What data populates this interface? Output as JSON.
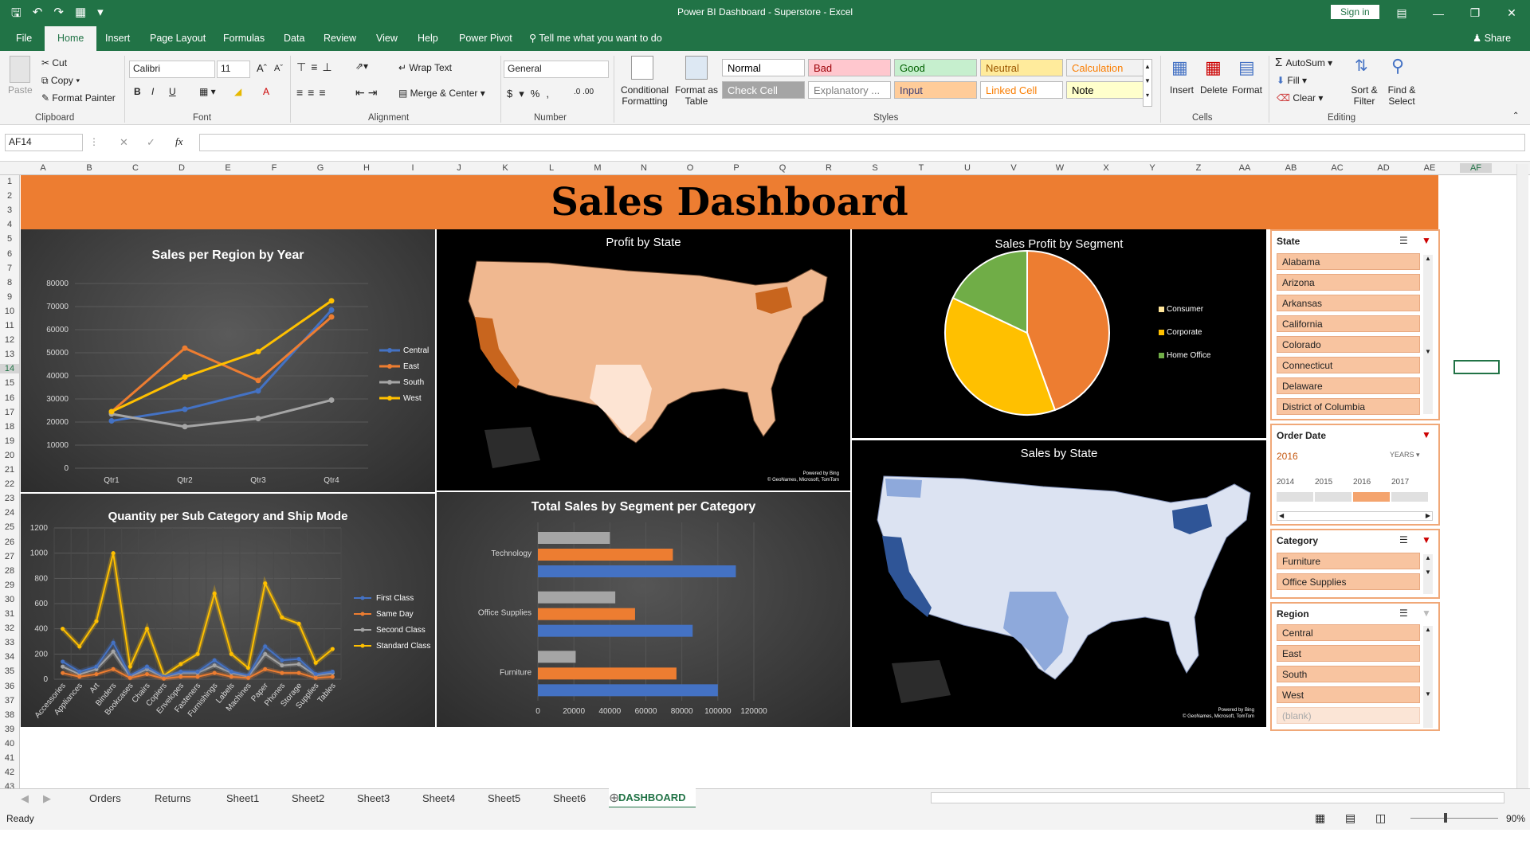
{
  "window": {
    "title": "Power BI Dashboard - Superstore  -  Excel",
    "signin": "Sign in"
  },
  "menu": [
    "File",
    "Home",
    "Insert",
    "Page Layout",
    "Formulas",
    "Data",
    "Review",
    "View",
    "Help",
    "Power Pivot"
  ],
  "tellme": "Tell me what you want to do",
  "share": "Share",
  "ribbon": {
    "clipboard": {
      "paste": "Paste",
      "cut": "Cut",
      "copy": "Copy",
      "format_painter": "Format Painter",
      "label": "Clipboard"
    },
    "font": {
      "name": "Calibri",
      "size": "11",
      "label": "Font"
    },
    "alignment": {
      "wrap": "Wrap Text",
      "merge": "Merge & Center",
      "label": "Alignment"
    },
    "number": {
      "format": "General",
      "label": "Number"
    },
    "styles": {
      "cond": "Conditional Formatting",
      "table": "Format as Table",
      "label": "Styles",
      "cells": [
        {
          "t": "Normal",
          "bg": "#ffffff",
          "fg": "#000000"
        },
        {
          "t": "Bad",
          "bg": "#ffc7ce",
          "fg": "#9c0006"
        },
        {
          "t": "Good",
          "bg": "#c6efce",
          "fg": "#006100"
        },
        {
          "t": "Neutral",
          "bg": "#ffeb9c",
          "fg": "#9c5700"
        },
        {
          "t": "Calculation",
          "bg": "#f2f2f2",
          "fg": "#fa7d00"
        },
        {
          "t": "Check Cell",
          "bg": "#a5a5a5",
          "fg": "#ffffff"
        },
        {
          "t": "Explanatory ...",
          "bg": "#ffffff",
          "fg": "#7f7f7f"
        },
        {
          "t": "Input",
          "bg": "#ffcc99",
          "fg": "#3f3f76"
        },
        {
          "t": "Linked Cell",
          "bg": "#ffffff",
          "fg": "#fa7d00"
        },
        {
          "t": "Note",
          "bg": "#ffffcc",
          "fg": "#000000"
        }
      ]
    },
    "cells": {
      "insert": "Insert",
      "delete": "Delete",
      "format": "Format",
      "label": "Cells"
    },
    "editing": {
      "autosum": "AutoSum",
      "fill": "Fill",
      "clear": "Clear",
      "sort": "Sort & Filter",
      "find": "Find & Select",
      "label": "Editing"
    }
  },
  "namebox": "AF14",
  "columns": [
    "A",
    "B",
    "C",
    "D",
    "E",
    "F",
    "G",
    "H",
    "I",
    "J",
    "K",
    "L",
    "M",
    "N",
    "O",
    "P",
    "Q",
    "R",
    "S",
    "T",
    "U",
    "V",
    "W",
    "X",
    "Y",
    "Z",
    "AA",
    "AB",
    "AC",
    "AD",
    "AE",
    "AF"
  ],
  "dashboard": {
    "title": "Sales Dashboard",
    "banner_color": "#ed7d31"
  },
  "slicers": {
    "state": {
      "title": "State",
      "items": [
        "Alabama",
        "Arizona",
        "Arkansas",
        "California",
        "Colorado",
        "Connecticut",
        "Delaware",
        "District of Columbia"
      ]
    },
    "order_date": {
      "title": "Order Date",
      "selected": "2016",
      "level": "YEARS",
      "years": [
        "2014",
        "2015",
        "2016",
        "2017"
      ]
    },
    "category": {
      "title": "Category",
      "items": [
        "Furniture",
        "Office Supplies"
      ]
    },
    "region": {
      "title": "Region",
      "items": [
        "Central",
        "East",
        "South",
        "West",
        "(blank)"
      ]
    }
  },
  "sheets": [
    "Orders",
    "Returns",
    "Sheet1",
    "Sheet2",
    "Sheet3",
    "Sheet4",
    "Sheet5",
    "Sheet6",
    "DASHBOARD"
  ],
  "status": {
    "ready": "Ready",
    "zoom": "90%"
  },
  "maps": {
    "profit": {
      "title": "Profit by State",
      "credit": "Powered by Bing",
      "credit2": "© GeoNames, Microsoft, TomTom"
    },
    "sales": {
      "title": "Sales by State",
      "credit": "Powered by Bing",
      "credit2": "© GeoNames, Microsoft, TomTom"
    }
  },
  "chart_data": [
    {
      "type": "line",
      "title": "Sales per Region by Year",
      "categories": [
        "Qtr1",
        "Qtr2",
        "Qtr3",
        "Qtr4"
      ],
      "ylim": [
        0,
        80000
      ],
      "yticks": [
        "0",
        "10000",
        "20000",
        "30000",
        "40000",
        "50000",
        "60000",
        "70000",
        "80000"
      ],
      "series": [
        {
          "name": "Central",
          "color": "#4472c4",
          "values": [
            20500,
            25500,
            33500,
            68500
          ]
        },
        {
          "name": "East",
          "color": "#ed7d31",
          "values": [
            24500,
            52000,
            38000,
            65500
          ]
        },
        {
          "name": "South",
          "color": "#a5a5a5",
          "values": [
            23500,
            18000,
            21500,
            29500
          ]
        },
        {
          "name": "West",
          "color": "#ffc000",
          "values": [
            24500,
            39500,
            50500,
            72500
          ]
        }
      ]
    },
    {
      "type": "pie",
      "title": "Sales Profit by Segment",
      "slices": [
        {
          "name": "Consumer",
          "value": 44.5,
          "color": "#ed7d31"
        },
        {
          "name": "Corporate",
          "value": 37.5,
          "color": "#ffc000"
        },
        {
          "name": "Home Office",
          "value": 18,
          "color": "#70ad47"
        }
      ]
    },
    {
      "type": "line",
      "title": "Quantity per Sub Category and Ship Mode",
      "ylim": [
        0,
        1200
      ],
      "yticks": [
        "0",
        "200",
        "400",
        "600",
        "800",
        "1000",
        "1200"
      ],
      "categories": [
        "Accessories",
        "Appliances",
        "Art",
        "Binders",
        "Bookcases",
        "Chairs",
        "Copiers",
        "Envelopes",
        "Fasteners",
        "Furnishings",
        "Labels",
        "Machines",
        "Paper",
        "Phones",
        "Storage",
        "Supplies",
        "Tables"
      ],
      "series": [
        {
          "name": "First Class",
          "color": "#4472c4",
          "values": [
            140,
            60,
            100,
            290,
            30,
            100,
            20,
            60,
            60,
            150,
            60,
            30,
            260,
            150,
            160,
            40,
            60
          ]
        },
        {
          "name": "Same Day",
          "color": "#ed7d31",
          "values": [
            50,
            20,
            40,
            80,
            10,
            40,
            5,
            20,
            20,
            50,
            20,
            10,
            80,
            50,
            50,
            10,
            20
          ]
        },
        {
          "name": "Second Class",
          "color": "#a5a5a5",
          "values": [
            100,
            40,
            80,
            220,
            20,
            80,
            15,
            50,
            50,
            110,
            50,
            20,
            200,
            110,
            120,
            30,
            50
          ]
        },
        {
          "name": "Standard Class",
          "color": "#ffc000",
          "values": [
            400,
            260,
            460,
            1000,
            100,
            400,
            30,
            120,
            200,
            680,
            200,
            90,
            760,
            490,
            440,
            130,
            240
          ]
        }
      ]
    },
    {
      "type": "bar",
      "title": "Total Sales by Segment per Category",
      "categories": [
        "Technology",
        "Office Supplies",
        "Furniture"
      ],
      "xlim": [
        0,
        120000
      ],
      "xticks": [
        "0",
        "20000",
        "40000",
        "60000",
        "80000",
        "100000",
        "120000"
      ],
      "series": [
        {
          "color": "#a5a5a5",
          "values": [
            40000,
            43000,
            21000
          ]
        },
        {
          "color": "#ed7d31",
          "values": [
            75000,
            54000,
            77000
          ]
        },
        {
          "color": "#4472c4",
          "values": [
            110000,
            86000,
            100000
          ]
        }
      ]
    }
  ]
}
